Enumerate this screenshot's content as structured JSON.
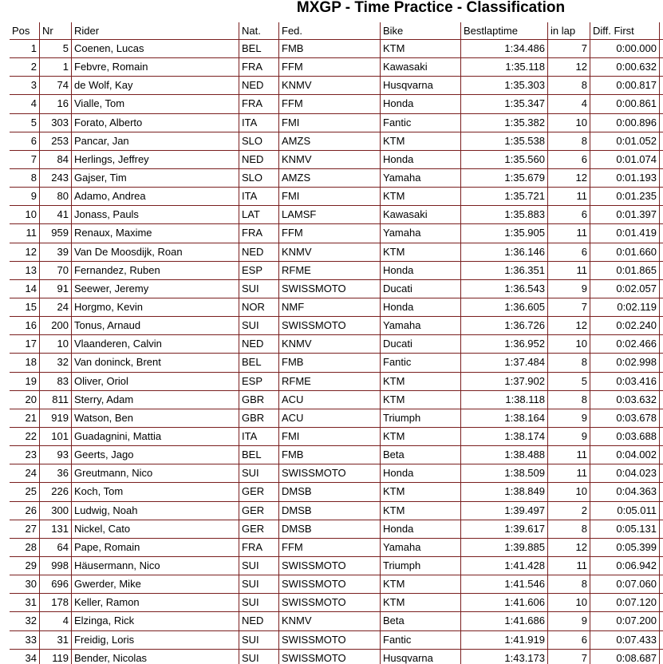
{
  "header": {
    "title": "MXGP - Time Practice - Classification"
  },
  "table": {
    "columns": [
      "Pos",
      "Nr",
      "Rider",
      "Nat.",
      "Fed.",
      "Bike",
      "Bestlaptime",
      "in lap",
      "Diff. First"
    ],
    "rows": [
      [
        "1",
        "5",
        "Coenen, Lucas",
        "BEL",
        "FMB",
        "KTM",
        "1:34.486",
        "7",
        "0:00.000"
      ],
      [
        "2",
        "1",
        "Febvre, Romain",
        "FRA",
        "FFM",
        "Kawasaki",
        "1:35.118",
        "12",
        "0:00.632"
      ],
      [
        "3",
        "74",
        "de Wolf, Kay",
        "NED",
        "KNMV",
        "Husqvarna",
        "1:35.303",
        "8",
        "0:00.817"
      ],
      [
        "4",
        "16",
        "Vialle, Tom",
        "FRA",
        "FFM",
        "Honda",
        "1:35.347",
        "4",
        "0:00.861"
      ],
      [
        "5",
        "303",
        "Forato, Alberto",
        "ITA",
        "FMI",
        "Fantic",
        "1:35.382",
        "10",
        "0:00.896"
      ],
      [
        "6",
        "253",
        "Pancar, Jan",
        "SLO",
        "AMZS",
        "KTM",
        "1:35.538",
        "8",
        "0:01.052"
      ],
      [
        "7",
        "84",
        "Herlings, Jeffrey",
        "NED",
        "KNMV",
        "Honda",
        "1:35.560",
        "6",
        "0:01.074"
      ],
      [
        "8",
        "243",
        "Gajser, Tim",
        "SLO",
        "AMZS",
        "Yamaha",
        "1:35.679",
        "12",
        "0:01.193"
      ],
      [
        "9",
        "80",
        "Adamo, Andrea",
        "ITA",
        "FMI",
        "KTM",
        "1:35.721",
        "11",
        "0:01.235"
      ],
      [
        "10",
        "41",
        "Jonass, Pauls",
        "LAT",
        "LAMSF",
        "Kawasaki",
        "1:35.883",
        "6",
        "0:01.397"
      ],
      [
        "11",
        "959",
        "Renaux, Maxime",
        "FRA",
        "FFM",
        "Yamaha",
        "1:35.905",
        "11",
        "0:01.419"
      ],
      [
        "12",
        "39",
        "Van De Moosdijk, Roan",
        "NED",
        "KNMV",
        "KTM",
        "1:36.146",
        "6",
        "0:01.660"
      ],
      [
        "13",
        "70",
        "Fernandez, Ruben",
        "ESP",
        "RFME",
        "Honda",
        "1:36.351",
        "11",
        "0:01.865"
      ],
      [
        "14",
        "91",
        "Seewer, Jeremy",
        "SUI",
        "SWISSMOTO",
        "Ducati",
        "1:36.543",
        "9",
        "0:02.057"
      ],
      [
        "15",
        "24",
        "Horgmo, Kevin",
        "NOR",
        "NMF",
        "Honda",
        "1:36.605",
        "7",
        "0:02.119"
      ],
      [
        "16",
        "200",
        "Tonus, Arnaud",
        "SUI",
        "SWISSMOTO",
        "Yamaha",
        "1:36.726",
        "12",
        "0:02.240"
      ],
      [
        "17",
        "10",
        "Vlaanderen, Calvin",
        "NED",
        "KNMV",
        "Ducati",
        "1:36.952",
        "10",
        "0:02.466"
      ],
      [
        "18",
        "32",
        "Van doninck, Brent",
        "BEL",
        "FMB",
        "Fantic",
        "1:37.484",
        "8",
        "0:02.998"
      ],
      [
        "19",
        "83",
        "Oliver, Oriol",
        "ESP",
        "RFME",
        "KTM",
        "1:37.902",
        "5",
        "0:03.416"
      ],
      [
        "20",
        "811",
        "Sterry, Adam",
        "GBR",
        "ACU",
        "KTM",
        "1:38.118",
        "8",
        "0:03.632"
      ],
      [
        "21",
        "919",
        "Watson, Ben",
        "GBR",
        "ACU",
        "Triumph",
        "1:38.164",
        "9",
        "0:03.678"
      ],
      [
        "22",
        "101",
        "Guadagnini, Mattia",
        "ITA",
        "FMI",
        "KTM",
        "1:38.174",
        "9",
        "0:03.688"
      ],
      [
        "23",
        "93",
        "Geerts, Jago",
        "BEL",
        "FMB",
        "Beta",
        "1:38.488",
        "11",
        "0:04.002"
      ],
      [
        "24",
        "36",
        "Greutmann, Nico",
        "SUI",
        "SWISSMOTO",
        "Honda",
        "1:38.509",
        "11",
        "0:04.023"
      ],
      [
        "25",
        "226",
        "Koch, Tom",
        "GER",
        "DMSB",
        "KTM",
        "1:38.849",
        "10",
        "0:04.363"
      ],
      [
        "26",
        "300",
        "Ludwig, Noah",
        "GER",
        "DMSB",
        "KTM",
        "1:39.497",
        "2",
        "0:05.011"
      ],
      [
        "27",
        "131",
        "Nickel, Cato",
        "GER",
        "DMSB",
        "Honda",
        "1:39.617",
        "8",
        "0:05.131"
      ],
      [
        "28",
        "64",
        "Pape, Romain",
        "FRA",
        "FFM",
        "Yamaha",
        "1:39.885",
        "12",
        "0:05.399"
      ],
      [
        "29",
        "998",
        "Häusermann, Nico",
        "SUI",
        "SWISSMOTO",
        "Triumph",
        "1:41.428",
        "11",
        "0:06.942"
      ],
      [
        "30",
        "696",
        "Gwerder, Mike",
        "SUI",
        "SWISSMOTO",
        "KTM",
        "1:41.546",
        "8",
        "0:07.060"
      ],
      [
        "31",
        "178",
        "Keller, Ramon",
        "SUI",
        "SWISSMOTO",
        "KTM",
        "1:41.606",
        "10",
        "0:07.120"
      ],
      [
        "32",
        "4",
        "Elzinga, Rick",
        "NED",
        "KNMV",
        "Beta",
        "1:41.686",
        "9",
        "0:07.200"
      ],
      [
        "33",
        "31",
        "Freidig, Loris",
        "SUI",
        "SWISSMOTO",
        "Fantic",
        "1:41.919",
        "6",
        "0:07.433"
      ],
      [
        "34",
        "119",
        "Bender, Nicolas",
        "SUI",
        "SWISSMOTO",
        "Husqvarna",
        "1:43.173",
        "7",
        "0:08.687"
      ]
    ]
  }
}
